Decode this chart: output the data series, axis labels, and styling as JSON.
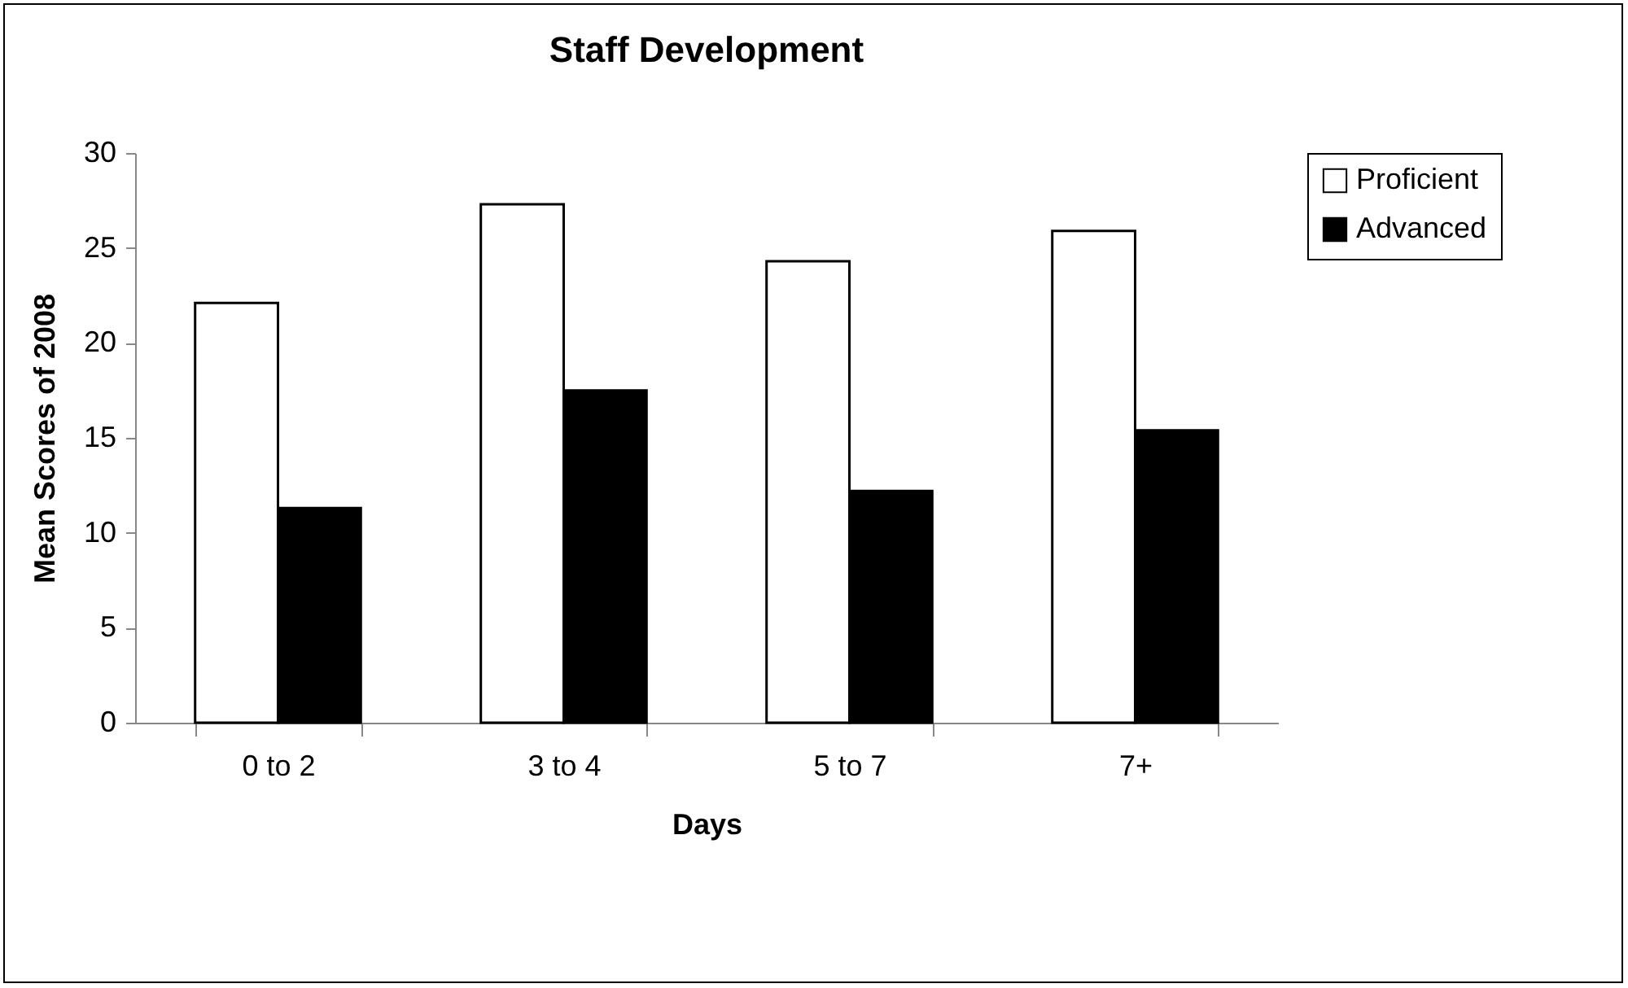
{
  "chart_data": {
    "type": "bar",
    "title": "Staff Development",
    "xlabel": "Days",
    "ylabel": "Mean Scores of 2008",
    "categories": [
      "0 to 2",
      "3 to 4",
      "5 to 7",
      "7+"
    ],
    "series": [
      {
        "name": "Proficient",
        "color": "#ffffff",
        "values": [
          22.1,
          27.3,
          24.3,
          25.9
        ]
      },
      {
        "name": "Advanced",
        "color": "#000000",
        "values": [
          11.3,
          17.5,
          12.2,
          15.4
        ]
      }
    ],
    "ylim": [
      0,
      30
    ],
    "yticks": [
      0,
      5,
      10,
      15,
      20,
      25,
      30
    ],
    "grid": false,
    "legend": "right"
  }
}
